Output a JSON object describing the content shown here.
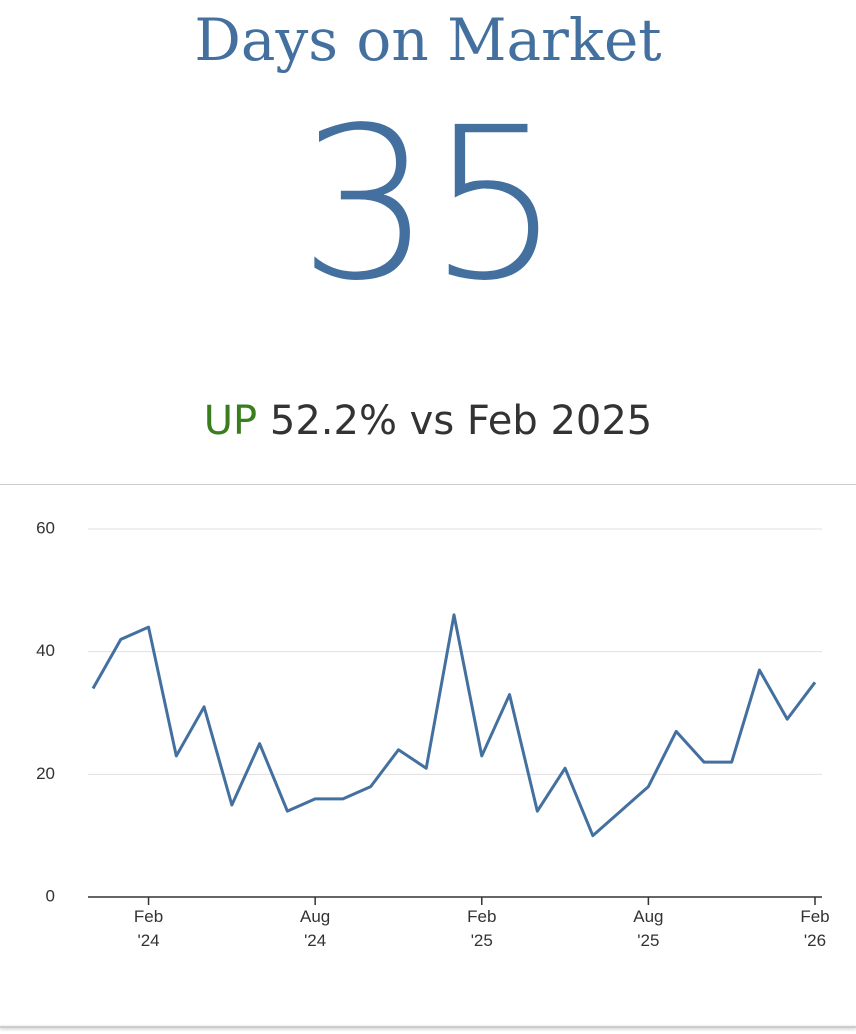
{
  "title": "Days on Market",
  "value": 35,
  "change": {
    "direction": "UP",
    "text": "52.2% vs Feb 2025"
  },
  "chart_data": {
    "type": "line",
    "categories": [
      null,
      null,
      "Feb '24",
      null,
      null,
      null,
      null,
      null,
      "Aug '24",
      null,
      null,
      null,
      null,
      null,
      "Feb '25",
      null,
      null,
      null,
      null,
      null,
      "Aug '25",
      null,
      null,
      null,
      null,
      null,
      "Feb '26"
    ],
    "series": [
      {
        "name": "Days on Market",
        "color": "#4470a0",
        "values": [
          34,
          42,
          44,
          23,
          31,
          15,
          25,
          14,
          16,
          16,
          18,
          24,
          21,
          46,
          23,
          33,
          14,
          21,
          10,
          14,
          18,
          27,
          22,
          22,
          37,
          29,
          35
        ]
      }
    ],
    "ylim": [
      0,
      60
    ],
    "yticks": [
      0,
      20,
      40,
      60
    ],
    "grid": true
  }
}
